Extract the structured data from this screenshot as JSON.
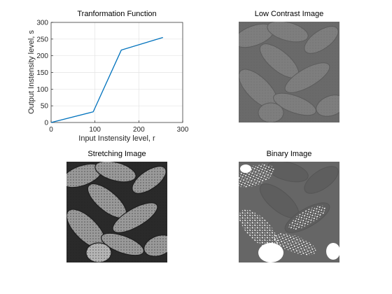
{
  "figure": {
    "titles": {
      "plot": "Tranformation Function",
      "low_contrast": "Low Contrast Image",
      "stretching": "Stretching Image",
      "binary": "Binary Image"
    }
  },
  "chart_data": {
    "type": "line",
    "title": "Tranformation Function",
    "xlabel": "Input Instensity level, r",
    "ylabel": "Output Instensity level, s",
    "xlim": [
      0,
      300
    ],
    "ylim": [
      0,
      300
    ],
    "xticks": [
      0,
      100,
      200,
      300
    ],
    "yticks": [
      0,
      50,
      100,
      150,
      200,
      250,
      300
    ],
    "grid": true,
    "series": [
      {
        "x": [
          0,
          96,
          160,
          255
        ],
        "y": [
          0,
          32,
          217,
          255
        ],
        "color": "#0072BD"
      }
    ]
  }
}
